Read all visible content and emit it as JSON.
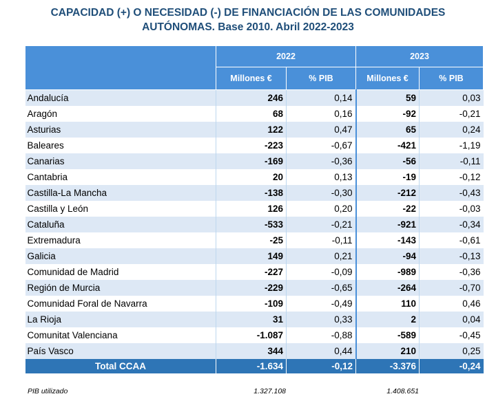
{
  "title": {
    "line1": "CAPACIDAD (+) O NECESIDAD (-) DE FINANCIACIÓN DE LAS COMUNIDADES",
    "line2": "AUTÓNOMAS. Base 2010. Abril 2022-2023"
  },
  "header": {
    "year_2022": "2022",
    "year_2023": "2023",
    "millones": "Millones €",
    "pct_pib": "% PIB"
  },
  "rows": [
    {
      "name": "Andalucía",
      "m2022": "246",
      "p2022": "0,14",
      "m2023": "59",
      "p2023": "0,03"
    },
    {
      "name": "Aragón",
      "m2022": "68",
      "p2022": "0,16",
      "m2023": "-92",
      "p2023": "-0,21"
    },
    {
      "name": "Asturias",
      "m2022": "122",
      "p2022": "0,47",
      "m2023": "65",
      "p2023": "0,24"
    },
    {
      "name": "Baleares",
      "m2022": "-223",
      "p2022": "-0,67",
      "m2023": "-421",
      "p2023": "-1,19"
    },
    {
      "name": "Canarias",
      "m2022": "-169",
      "p2022": "-0,36",
      "m2023": "-56",
      "p2023": "-0,11"
    },
    {
      "name": "Cantabria",
      "m2022": "20",
      "p2022": "0,13",
      "m2023": "-19",
      "p2023": "-0,12"
    },
    {
      "name": "Castilla-La Mancha",
      "m2022": "-138",
      "p2022": "-0,30",
      "m2023": "-212",
      "p2023": "-0,43"
    },
    {
      "name": "Castilla y León",
      "m2022": "126",
      "p2022": "0,20",
      "m2023": "-22",
      "p2023": "-0,03"
    },
    {
      "name": "Cataluña",
      "m2022": "-533",
      "p2022": "-0,21",
      "m2023": "-921",
      "p2023": "-0,34"
    },
    {
      "name": "Extremadura",
      "m2022": "-25",
      "p2022": "-0,11",
      "m2023": "-143",
      "p2023": "-0,61"
    },
    {
      "name": "Galicia",
      "m2022": "149",
      "p2022": "0,21",
      "m2023": "-94",
      "p2023": "-0,13"
    },
    {
      "name": "Comunidad de Madrid",
      "m2022": "-227",
      "p2022": "-0,09",
      "m2023": "-989",
      "p2023": "-0,36"
    },
    {
      "name": "Región de Murcia",
      "m2022": "-229",
      "p2022": "-0,65",
      "m2023": "-264",
      "p2023": "-0,70"
    },
    {
      "name": "Comunidad Foral de Navarra",
      "m2022": "-109",
      "p2022": "-0,49",
      "m2023": "110",
      "p2023": "0,46"
    },
    {
      "name": "La Rioja",
      "m2022": "31",
      "p2022": "0,33",
      "m2023": "2",
      "p2023": "0,04"
    },
    {
      "name": "Comunitat Valenciana",
      "m2022": "-1.087",
      "p2022": "-0,88",
      "m2023": "-589",
      "p2023": "-0,45"
    },
    {
      "name": "País Vasco",
      "m2022": "344",
      "p2022": "0,44",
      "m2023": "210",
      "p2023": "0,25"
    }
  ],
  "total": {
    "name": "Total CCAA",
    "m2022": "-1.634",
    "p2022": "-0,12",
    "m2023": "-3.376",
    "p2023": "-0,24"
  },
  "pib": {
    "label": "PIB utilizado",
    "v2022": "1.327.108",
    "v2023": "1.408.651"
  },
  "colors": {
    "title": "#1f4e79",
    "header": "#4a90d9",
    "total": "#2e75b6",
    "stripe": "#dde8f5"
  }
}
